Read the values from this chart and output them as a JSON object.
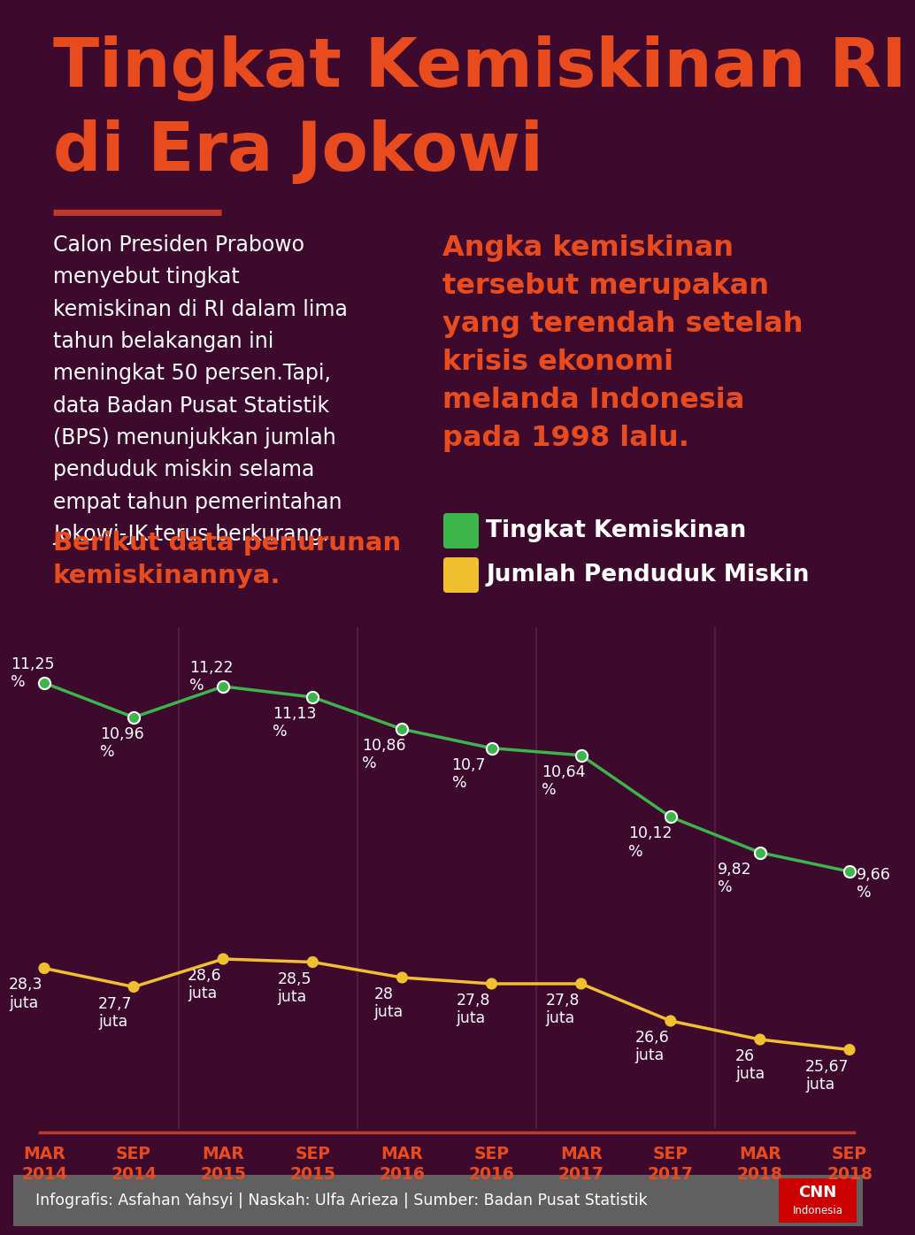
{
  "bg_color": "#3d0a2e",
  "title_line1": "Tingkat Kemiskinan RI",
  "title_line2": "di Era Jokowi",
  "title_color": "#e84c1e",
  "divider_color": "#c0392b",
  "left_text": "Calon Presiden Prabowo\nmenyebut tingkat\nkemiskinan di RI dalam lima\ntahun belakangan ini\nmeningkat 50 persen.Tapi,\ndata Badan Pusat Statistik\n(BPS) menunjukkan jumlah\npenduduk miskin selama\nempat tahun pemerintahan\nJokowi-JK terus berkurang.",
  "left_text_color": "#ffffff",
  "right_text": "Angka kemiskinan\ntersebut merupakan\nyang terendah setelah\nkrisis ekonomi\nmelanda Indonesia\npada 1998 lalu.",
  "right_text_color": "#e84c1e",
  "cta_text": "Berikut data penurunan\nkemiskinannya.",
  "cta_color": "#e84c1e",
  "legend_green": "Tingkat Kemiskinan",
  "legend_yellow": "Jumlah Penduduk Miskin",
  "legend_text_color": "#ffffff",
  "green_color": "#3cb54a",
  "yellow_color": "#f0c030",
  "x_labels": [
    "MAR\n2014",
    "SEP\n2014",
    "MAR\n2015",
    "SEP\n2015",
    "MAR\n2016",
    "SEP\n2016",
    "MAR\n2017",
    "SEP\n2017",
    "MAR\n2018",
    "SEP\n2018"
  ],
  "x_label_color": "#e84c1e",
  "green_values": [
    11.25,
    10.96,
    11.22,
    11.13,
    10.86,
    10.7,
    10.64,
    10.12,
    9.82,
    9.66
  ],
  "green_labels": [
    "11,25\n%",
    "10,96\n%",
    "11,22\n%",
    "11,13\n%",
    "10,86\n%",
    "10,7\n%",
    "10,64\n%",
    "10,12\n%",
    "9,82\n%",
    "9,66\n%"
  ],
  "yellow_values": [
    28.3,
    27.7,
    28.6,
    28.5,
    28.0,
    27.8,
    27.8,
    26.6,
    26.0,
    25.67
  ],
  "yellow_labels": [
    "28,3\njuta",
    "27,7\njuta",
    "28,6\njuta",
    "28,5\njuta",
    "28\njuta",
    "27,8\njuta",
    "27,8\njuta",
    "26,6\njuta",
    "26\njuta",
    "25,67\njuta"
  ],
  "footer_bg": "#606060",
  "footer_text": "Infografis: Asfahan Yahsyi | Naskah: Ulfa Arieza | Sumber: Badan Pusat Statistik",
  "footer_text_color": "#ffffff",
  "separator_color": "#c0392b",
  "vline_color": "#5a2040"
}
